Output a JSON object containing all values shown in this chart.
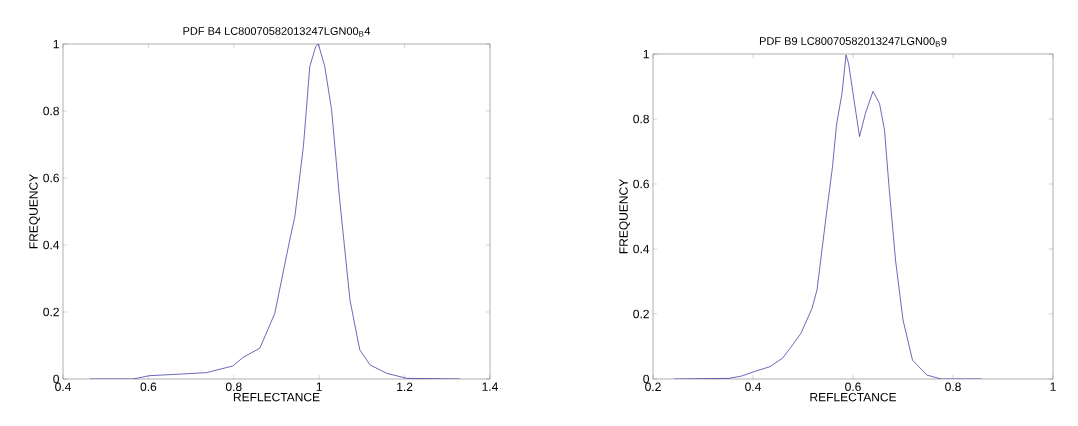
{
  "chart_data": [
    {
      "type": "line",
      "title": "PDF B4 LC80070582013247LGN00$_{B}$4",
      "xlabel": "REFLECTANCE",
      "ylabel": "FREQUENCY",
      "series": [
        {
          "color": "#2a2aa0",
          "x": [
            0.4625,
            0.564,
            0.603,
            0.681,
            0.736,
            0.798,
            0.822,
            0.861,
            0.896,
            0.931,
            0.943,
            0.963,
            0.978,
            0.992,
            0.998,
            1.013,
            1.029,
            1.048,
            1.072,
            1.095,
            1.119,
            1.158,
            1.205,
            1.33
          ],
          "values": [
            0,
            0,
            0.01,
            0.015,
            0.019,
            0.039,
            0.065,
            0.092,
            0.196,
            0.415,
            0.485,
            0.694,
            0.933,
            0.993,
            1.0,
            0.933,
            0.804,
            0.535,
            0.236,
            0.087,
            0.042,
            0.017,
            0.002,
            0
          ]
        }
      ],
      "xlim": [
        0.4,
        1.4
      ],
      "ylim": [
        0,
        1
      ],
      "xticks": [
        0.4,
        0.6,
        0.8,
        1,
        1.2,
        1.4
      ],
      "yticks": [
        0,
        0.2,
        0.4,
        0.6,
        0.8,
        1
      ]
    },
    {
      "type": "line",
      "title": "PDF B9 LC80070582013247LGN00$_{B}$9",
      "xlabel": "REFLECTANCE",
      "ylabel": "FREQUENCY",
      "series": [
        {
          "color": "#2a2aa0",
          "x": [
            0.242,
            0.352,
            0.377,
            0.403,
            0.434,
            0.459,
            0.474,
            0.496,
            0.518,
            0.528,
            0.547,
            0.559,
            0.567,
            0.578,
            0.586,
            0.591,
            0.613,
            0.625,
            0.64,
            0.653,
            0.663,
            0.672,
            0.685,
            0.7,
            0.719,
            0.748,
            0.776,
            0.857
          ],
          "values": [
            0,
            0.002,
            0.009,
            0.023,
            0.038,
            0.064,
            0.094,
            0.141,
            0.217,
            0.274,
            0.51,
            0.653,
            0.782,
            0.879,
            0.997,
            0.972,
            0.746,
            0.818,
            0.885,
            0.848,
            0.766,
            0.592,
            0.366,
            0.182,
            0.058,
            0.012,
            0,
            0
          ]
        }
      ],
      "xlim": [
        0.2,
        1
      ],
      "ylim": [
        0,
        1
      ],
      "xticks": [
        0.2,
        0.4,
        0.6,
        0.8,
        1
      ],
      "yticks": [
        0,
        0.2,
        0.4,
        0.6,
        0.8,
        1
      ]
    }
  ]
}
